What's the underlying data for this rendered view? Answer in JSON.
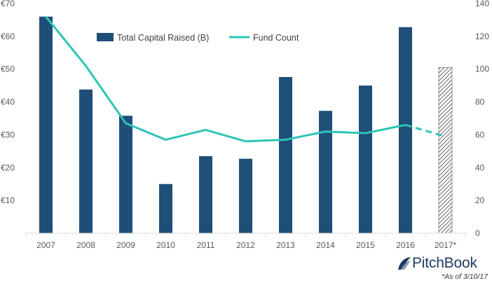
{
  "chart_data": {
    "type": "bar",
    "categories": [
      "2007",
      "2008",
      "2009",
      "2010",
      "2011",
      "2012",
      "2013",
      "2014",
      "2015",
      "2016",
      "2017*"
    ],
    "series": [
      {
        "name": "Total Capital Raised (B)",
        "type": "bar",
        "axis": "left",
        "values": [
          66,
          43.8,
          35.8,
          15,
          23.5,
          22.7,
          47.6,
          37.3,
          45,
          62.8,
          50.5
        ],
        "note": "2017* bar shown with diagonal hatching"
      },
      {
        "name": "Fund Count",
        "type": "line",
        "axis": "right",
        "values": [
          132,
          102,
          67,
          57,
          63,
          56,
          57,
          62,
          61,
          66,
          59
        ],
        "note": "segment 2016 to 2017* is dashed"
      }
    ],
    "left_axis": {
      "ticks": [
        "€10",
        "€20",
        "€30",
        "€40",
        "€50",
        "€60",
        "€70"
      ],
      "ylim": [
        0,
        70
      ]
    },
    "right_axis": {
      "ticks": [
        "0",
        "20",
        "40",
        "60",
        "80",
        "100",
        "120",
        "140"
      ],
      "ylim": [
        0,
        140
      ]
    },
    "grid": false,
    "legend": "top-left",
    "colors": {
      "bar": "#1f4e79",
      "line": "#2ec4b6",
      "hatch": "#404040",
      "axis": "#d9d9d9",
      "text": "#595959"
    }
  },
  "brand": {
    "logo_text": "PitchBook",
    "logo_icon": "pitchbook-leaf-icon"
  },
  "footnote": "*As of 3/10/17"
}
